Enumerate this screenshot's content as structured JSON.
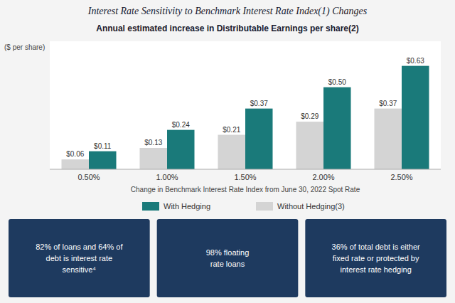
{
  "chart_data": {
    "type": "bar",
    "title": "Interest Rate Sensitivity to Benchmark Interest Rate Index(1) Changes",
    "subtitle": "Annual estimated increase in Distributable Earnings per share(2)",
    "ylabel": "($ per share)",
    "xlabel": "Change in Benchmark Interest Rate Index from June 30, 2022 Spot Rate",
    "categories": [
      "0.50%",
      "1.00%",
      "1.50%",
      "2.00%",
      "2.50%"
    ],
    "series": [
      {
        "name": "Without Hedging(3)",
        "color": "#d4d4d4",
        "values": [
          0.06,
          0.13,
          0.21,
          0.29,
          0.37
        ],
        "value_labels": [
          "$0.06",
          "$0.13",
          "$0.21",
          "$0.29",
          "$0.37"
        ]
      },
      {
        "name": "With Hedging",
        "color": "#1a7a7a",
        "values": [
          0.11,
          0.24,
          0.37,
          0.5,
          0.63
        ],
        "value_labels": [
          "$0.11",
          "$0.24",
          "$0.37",
          "$0.50",
          "$0.63"
        ]
      }
    ],
    "ylim": [
      0,
      0.78
    ],
    "tick_labels": "x",
    "data_labels": true,
    "grid": false,
    "legend": "bottom",
    "annotations": [
      "82% of loans and 64% of\ndebt is interest rate\nsensitive⁴",
      "98% floating\nrate loans",
      "36% of total debt is either\nfixed rate or protected by\ninterest rate hedging"
    ]
  }
}
